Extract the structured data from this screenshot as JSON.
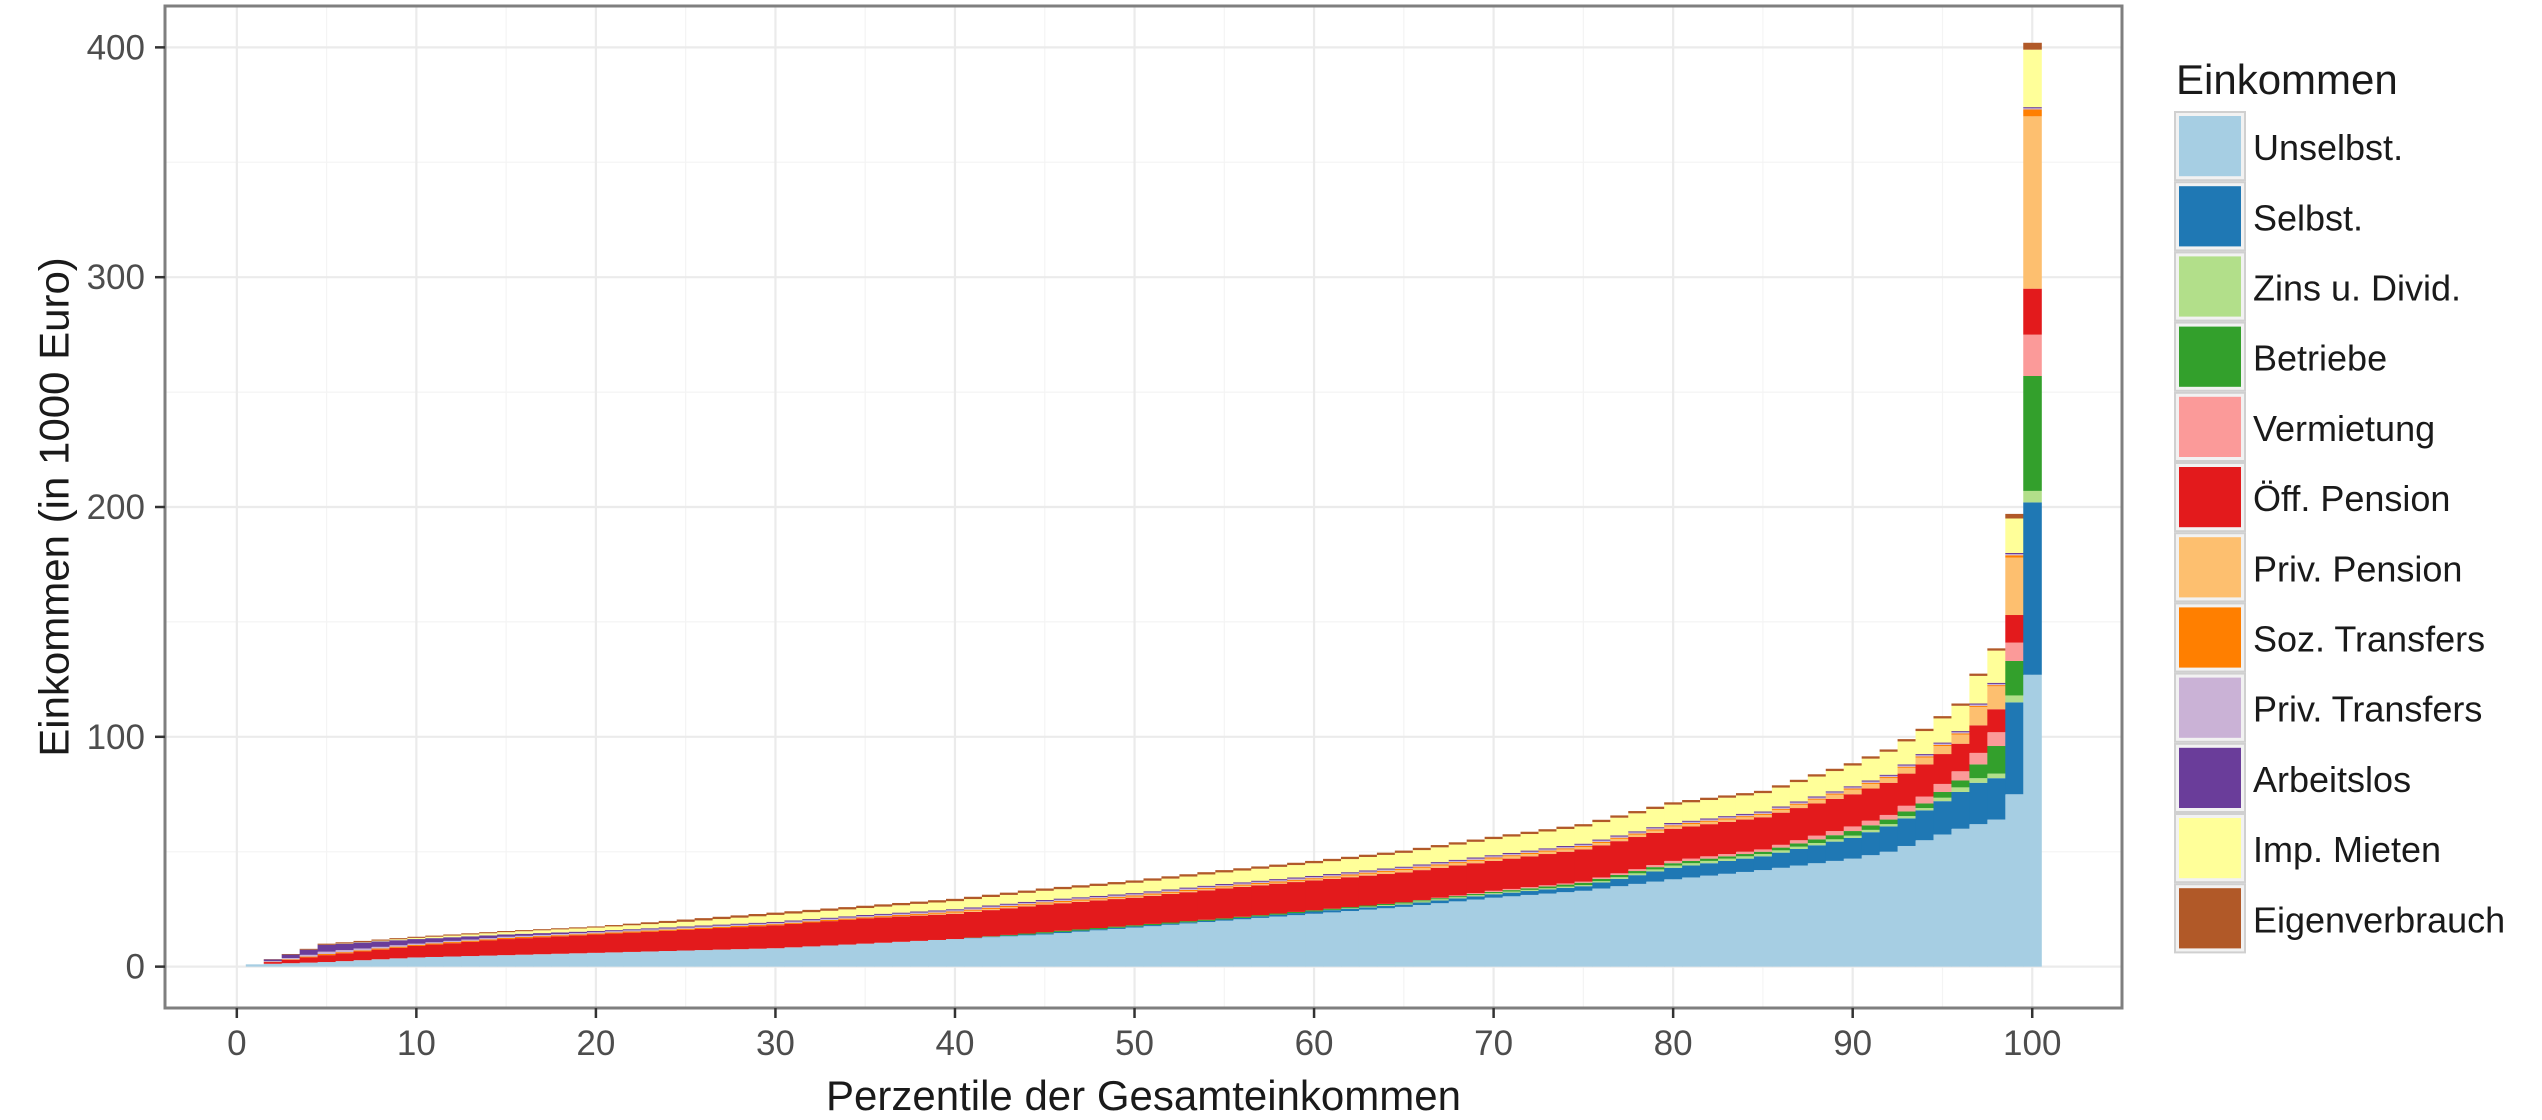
{
  "chart_data": {
    "type": "bar",
    "stacked": true,
    "title": "",
    "xlabel": "Perzentile der Gesamteinkommen",
    "ylabel": "Einkommen (in 1000 Euro)",
    "xlim": [
      -4,
      105
    ],
    "ylim": [
      -18,
      418
    ],
    "x_ticks": [
      0,
      10,
      20,
      30,
      40,
      50,
      60,
      70,
      80,
      90,
      100
    ],
    "y_ticks": [
      0,
      100,
      200,
      300,
      400
    ],
    "grid": true,
    "legend": {
      "title": "Einkommen",
      "position": "right"
    },
    "x": [
      1,
      5,
      10,
      15,
      20,
      25,
      30,
      35,
      40,
      45,
      50,
      55,
      60,
      65,
      70,
      75,
      80,
      85,
      90,
      92,
      94,
      96,
      97,
      98,
      99,
      100
    ],
    "series": [
      {
        "name": "Unselbst.",
        "color": "#a6cee3",
        "values": [
          1,
          2,
          4,
          5,
          6,
          7,
          8,
          10,
          12,
          14,
          17,
          20,
          23,
          26,
          30,
          33,
          38,
          42,
          47,
          50,
          55,
          60,
          62,
          64,
          75,
          127
        ]
      },
      {
        "name": "Selbst.",
        "color": "#1f78b4",
        "values": [
          0,
          0,
          0,
          0,
          0,
          0,
          0,
          0,
          0,
          0.5,
          0.5,
          0.5,
          1,
          1,
          1.5,
          2,
          5,
          6,
          9,
          11,
          13,
          16,
          18,
          18,
          40,
          75
        ]
      },
      {
        "name": "Zins u. Divid.",
        "color": "#b2df8a",
        "values": [
          0,
          0,
          0,
          0,
          0,
          0,
          0,
          0,
          0,
          0,
          0,
          0,
          0,
          0.5,
          0.5,
          0.5,
          1,
          1,
          1,
          1,
          1,
          2,
          2,
          2,
          3,
          5
        ]
      },
      {
        "name": "Betriebe",
        "color": "#33a02c",
        "values": [
          0,
          0,
          0,
          0,
          0,
          0,
          0,
          0,
          0,
          0.5,
          0.5,
          0.5,
          0.5,
          0.5,
          0.5,
          1,
          1,
          1,
          2,
          2,
          2,
          3,
          6,
          12,
          15,
          50
        ]
      },
      {
        "name": "Vermietung",
        "color": "#fb9a99",
        "values": [
          0,
          0,
          0,
          0,
          0,
          0,
          0,
          0,
          0,
          0,
          0,
          0,
          0,
          0,
          0.5,
          0.5,
          1,
          1,
          2,
          2,
          3,
          4,
          5,
          6,
          8,
          18
        ]
      },
      {
        "name": "Öff. Pension",
        "color": "#e31a1c",
        "values": [
          0,
          3,
          5,
          7,
          8,
          9,
          10,
          11,
          11,
          12,
          12,
          13,
          13,
          13,
          13,
          14,
          14,
          14,
          14,
          14,
          14,
          12,
          12,
          10,
          12,
          20
        ]
      },
      {
        "name": "Priv. Pension",
        "color": "#fdbf6f",
        "values": [
          0,
          0,
          0,
          0,
          0,
          0,
          0,
          0,
          0.5,
          0.5,
          0.5,
          0.5,
          0.5,
          1,
          1,
          1,
          1,
          1,
          2,
          2,
          3,
          4,
          8,
          10,
          25,
          75
        ]
      },
      {
        "name": "Soz. Transfers",
        "color": "#ff7f00",
        "values": [
          0,
          0.5,
          0.5,
          0.5,
          0.5,
          0.5,
          0.5,
          0.5,
          0.5,
          0.5,
          0.5,
          0.5,
          0.5,
          0.5,
          0.5,
          0.5,
          0.5,
          0.5,
          0.5,
          0.5,
          0.5,
          0.5,
          0.5,
          0.5,
          1,
          3
        ]
      },
      {
        "name": "Priv. Transfers",
        "color": "#cab2d6",
        "values": [
          0,
          1,
          0.5,
          0.5,
          0.5,
          0.5,
          0.5,
          0.5,
          0.5,
          0.5,
          0.5,
          0.5,
          0.5,
          0.5,
          0.5,
          0.5,
          0.5,
          0.5,
          0.5,
          0.5,
          0.5,
          0.5,
          0.5,
          0.5,
          0.5,
          0.5
        ]
      },
      {
        "name": "Arbeitslos",
        "color": "#6a3d9a",
        "values": [
          0,
          3,
          2,
          1,
          0.5,
          0.5,
          0.5,
          0.5,
          0.5,
          0.5,
          0.5,
          0.5,
          0.5,
          0.5,
          0.5,
          0.5,
          0.5,
          0.5,
          0.5,
          0.5,
          0.5,
          0.5,
          0.5,
          0.5,
          0.5,
          0.5
        ]
      },
      {
        "name": "Imp. Mieten",
        "color": "#ffff99",
        "values": [
          0,
          0,
          0.5,
          1,
          1.5,
          2,
          3,
          3,
          3.5,
          4,
          4.5,
          5,
          5.5,
          6,
          7,
          7.5,
          8,
          8,
          9,
          10,
          10,
          11,
          12,
          14,
          15,
          25
        ]
      },
      {
        "name": "Eigenverbrauch",
        "color": "#b15928",
        "values": [
          0,
          0.5,
          0.5,
          0.5,
          0.5,
          1,
          1,
          1,
          1,
          1,
          1,
          1,
          1,
          1,
          1,
          1,
          1,
          1,
          1,
          1,
          1,
          1,
          1,
          1,
          2,
          3
        ]
      }
    ]
  }
}
